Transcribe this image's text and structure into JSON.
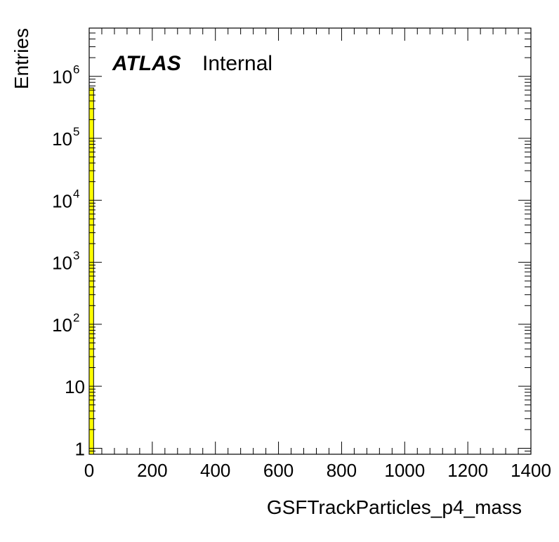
{
  "chart_data": {
    "type": "bar",
    "title": "",
    "xlabel": "GSFTrackParticles_p4_mass",
    "ylabel": "Entries",
    "xlim": [
      0,
      1400
    ],
    "ylim_log": [
      0.8,
      6000000
    ],
    "y_scale": "log",
    "x_ticks": [
      "0",
      "200",
      "400",
      "600",
      "800",
      "1000",
      "1200",
      "1400"
    ],
    "y_ticks": [
      {
        "value": 1,
        "base": "1",
        "exp": ""
      },
      {
        "value": 10,
        "base": "10",
        "exp": ""
      },
      {
        "value": 100,
        "base": "10",
        "exp": "2"
      },
      {
        "value": 1000,
        "base": "10",
        "exp": "3"
      },
      {
        "value": 10000,
        "base": "10",
        "exp": "4"
      },
      {
        "value": 100000,
        "base": "10",
        "exp": "5"
      },
      {
        "value": 1000000,
        "base": "10",
        "exp": "6"
      }
    ],
    "bins": [
      {
        "x_low": 0,
        "x_high": 14,
        "value": 650000
      }
    ],
    "fill_color": "#ffff00",
    "line_color": "#000000",
    "grid": false,
    "legend": "none"
  },
  "annotation": {
    "experiment": "ATLAS",
    "status": "Internal"
  }
}
